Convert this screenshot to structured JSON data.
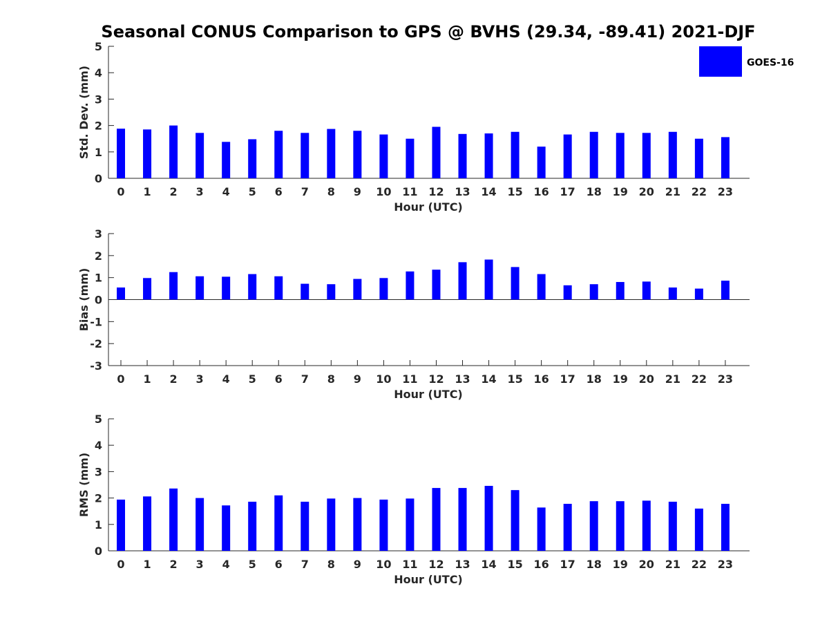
{
  "figure": {
    "title": "Seasonal CONUS Comparison to GPS @ BVHS (29.34, -89.41) 2021-DJF"
  },
  "legend": {
    "label": "GOES-16",
    "color": "#0000ff",
    "placement": "top-right"
  },
  "chart_data": [
    {
      "type": "bar",
      "xlabel": "Hour (UTC)",
      "ylabel": "Std. Dev. (mm)",
      "categories": [
        "0",
        "1",
        "2",
        "3",
        "4",
        "5",
        "6",
        "7",
        "8",
        "9",
        "10",
        "11",
        "12",
        "13",
        "14",
        "15",
        "16",
        "17",
        "18",
        "19",
        "20",
        "21",
        "22",
        "23"
      ],
      "series": [
        {
          "name": "GOES-16",
          "values": [
            1.88,
            1.85,
            2.0,
            1.72,
            1.38,
            1.48,
            1.8,
            1.72,
            1.87,
            1.8,
            1.66,
            1.5,
            1.95,
            1.68,
            1.7,
            1.76,
            1.2,
            1.66,
            1.76,
            1.72,
            1.72,
            1.76,
            1.5,
            1.56
          ]
        }
      ],
      "yticks": [
        0,
        1,
        2,
        3,
        4,
        5
      ],
      "ylim": [
        0,
        5
      ],
      "grid": false
    },
    {
      "type": "bar",
      "xlabel": "Hour (UTC)",
      "ylabel": "Bias (mm)",
      "categories": [
        "0",
        "1",
        "2",
        "3",
        "4",
        "5",
        "6",
        "7",
        "8",
        "9",
        "10",
        "11",
        "12",
        "13",
        "14",
        "15",
        "16",
        "17",
        "18",
        "19",
        "20",
        "21",
        "22",
        "23"
      ],
      "series": [
        {
          "name": "GOES-16",
          "values": [
            0.55,
            0.98,
            1.25,
            1.06,
            1.04,
            1.16,
            1.06,
            0.72,
            0.7,
            0.94,
            0.98,
            1.28,
            1.36,
            1.7,
            1.82,
            1.48,
            1.16,
            0.65,
            0.7,
            0.8,
            0.82,
            0.55,
            0.5,
            0.86
          ]
        }
      ],
      "yticks": [
        -3,
        -2,
        -1,
        0,
        1,
        2,
        3
      ],
      "ylim": [
        -3,
        3
      ],
      "grid": false
    },
    {
      "type": "bar",
      "xlabel": "Hour (UTC)",
      "ylabel": "RMS (mm)",
      "categories": [
        "0",
        "1",
        "2",
        "3",
        "4",
        "5",
        "6",
        "7",
        "8",
        "9",
        "10",
        "11",
        "12",
        "13",
        "14",
        "15",
        "16",
        "17",
        "18",
        "19",
        "20",
        "21",
        "22",
        "23"
      ],
      "series": [
        {
          "name": "GOES-16",
          "values": [
            1.94,
            2.06,
            2.36,
            2.0,
            1.72,
            1.86,
            2.1,
            1.86,
            1.98,
            2.0,
            1.94,
            1.98,
            2.38,
            2.38,
            2.46,
            2.3,
            1.64,
            1.78,
            1.88,
            1.88,
            1.9,
            1.86,
            1.6,
            1.78
          ]
        }
      ],
      "yticks": [
        0,
        1,
        2,
        3,
        4,
        5
      ],
      "ylim": [
        0,
        5
      ],
      "grid": false
    }
  ]
}
